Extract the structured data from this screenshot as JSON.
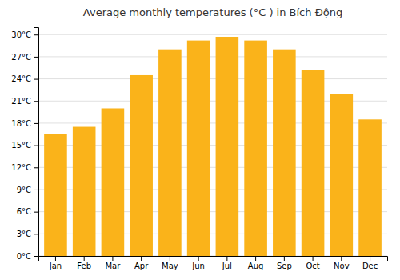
{
  "chart_data": {
    "type": "bar",
    "title": "Average monthly temperatures (°C ) in Bích Động",
    "categories": [
      "Jan",
      "Feb",
      "Mar",
      "Apr",
      "May",
      "Jun",
      "Jul",
      "Aug",
      "Sep",
      "Oct",
      "Nov",
      "Dec"
    ],
    "values": [
      16.5,
      17.5,
      20.0,
      24.5,
      28.0,
      29.2,
      29.7,
      29.2,
      28.0,
      25.2,
      22.0,
      18.5
    ],
    "color": "#fab31a",
    "ylim": [
      0,
      31
    ],
    "yticks": [
      {
        "value": 0,
        "label": "0°C"
      },
      {
        "value": 3,
        "label": "3°C"
      },
      {
        "value": 6,
        "label": "6°C"
      },
      {
        "value": 9,
        "label": "9°C"
      },
      {
        "value": 12,
        "label": "12°C"
      },
      {
        "value": 15,
        "label": "15°C"
      },
      {
        "value": 18,
        "label": "18°C"
      },
      {
        "value": 21,
        "label": "21°C"
      },
      {
        "value": 24,
        "label": "24°C"
      },
      {
        "value": 27,
        "label": "27°C"
      },
      {
        "value": 30,
        "label": "30°C"
      }
    ],
    "grid": true
  }
}
